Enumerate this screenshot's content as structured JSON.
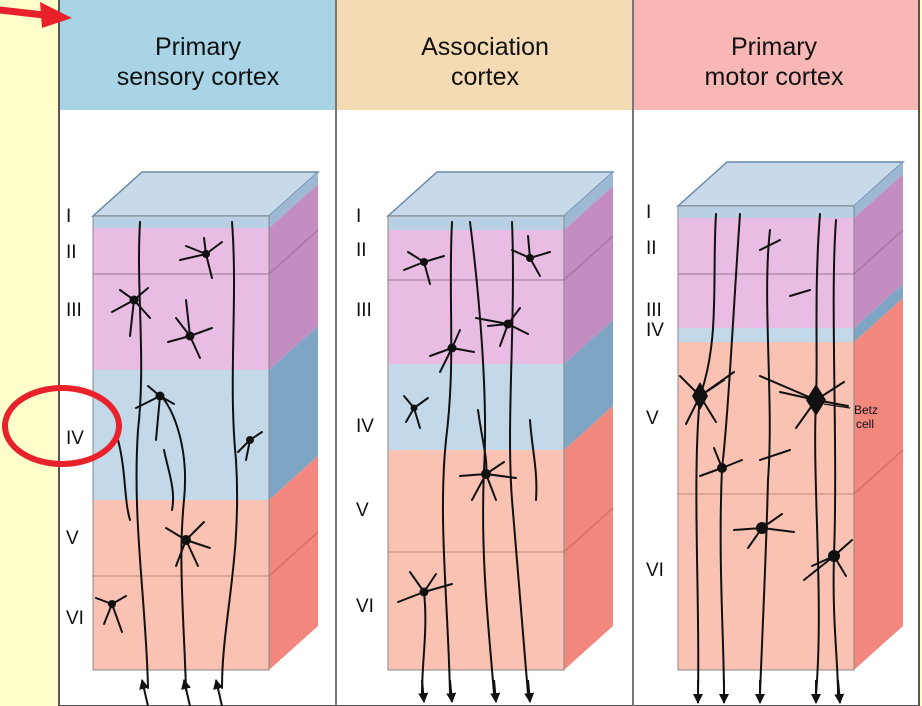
{
  "panels": [
    {
      "id": "sensory",
      "title_line1": "Primary",
      "title_line2": "sensory cortex",
      "header_color": "#a8d4e6",
      "layers": [
        "I",
        "II",
        "III",
        "IV",
        "V",
        "VI"
      ]
    },
    {
      "id": "association",
      "title_line1": "Association",
      "title_line2": "cortex",
      "header_color": "#f4dbb3",
      "layers": [
        "I",
        "II",
        "III",
        "IV",
        "V",
        "VI"
      ]
    },
    {
      "id": "motor",
      "title_line1": "Primary",
      "title_line2": "motor cortex",
      "header_color": "#f8b7b4",
      "layers": [
        "I",
        "II",
        "III",
        "IV",
        "V",
        "VI"
      ],
      "annotation_line1": "Betz",
      "annotation_line2": "cell"
    }
  ],
  "colors": {
    "page_background": "#ffffcc",
    "highlight": "#e8212a",
    "layer_I": "#b9cfe3",
    "layer_II_III": "#e9bde3",
    "layer_IV": "#c3d9ea",
    "layer_V_VI": "#f9c2b3"
  },
  "icons": [
    "red-arrow-icon",
    "highlight-circle"
  ]
}
